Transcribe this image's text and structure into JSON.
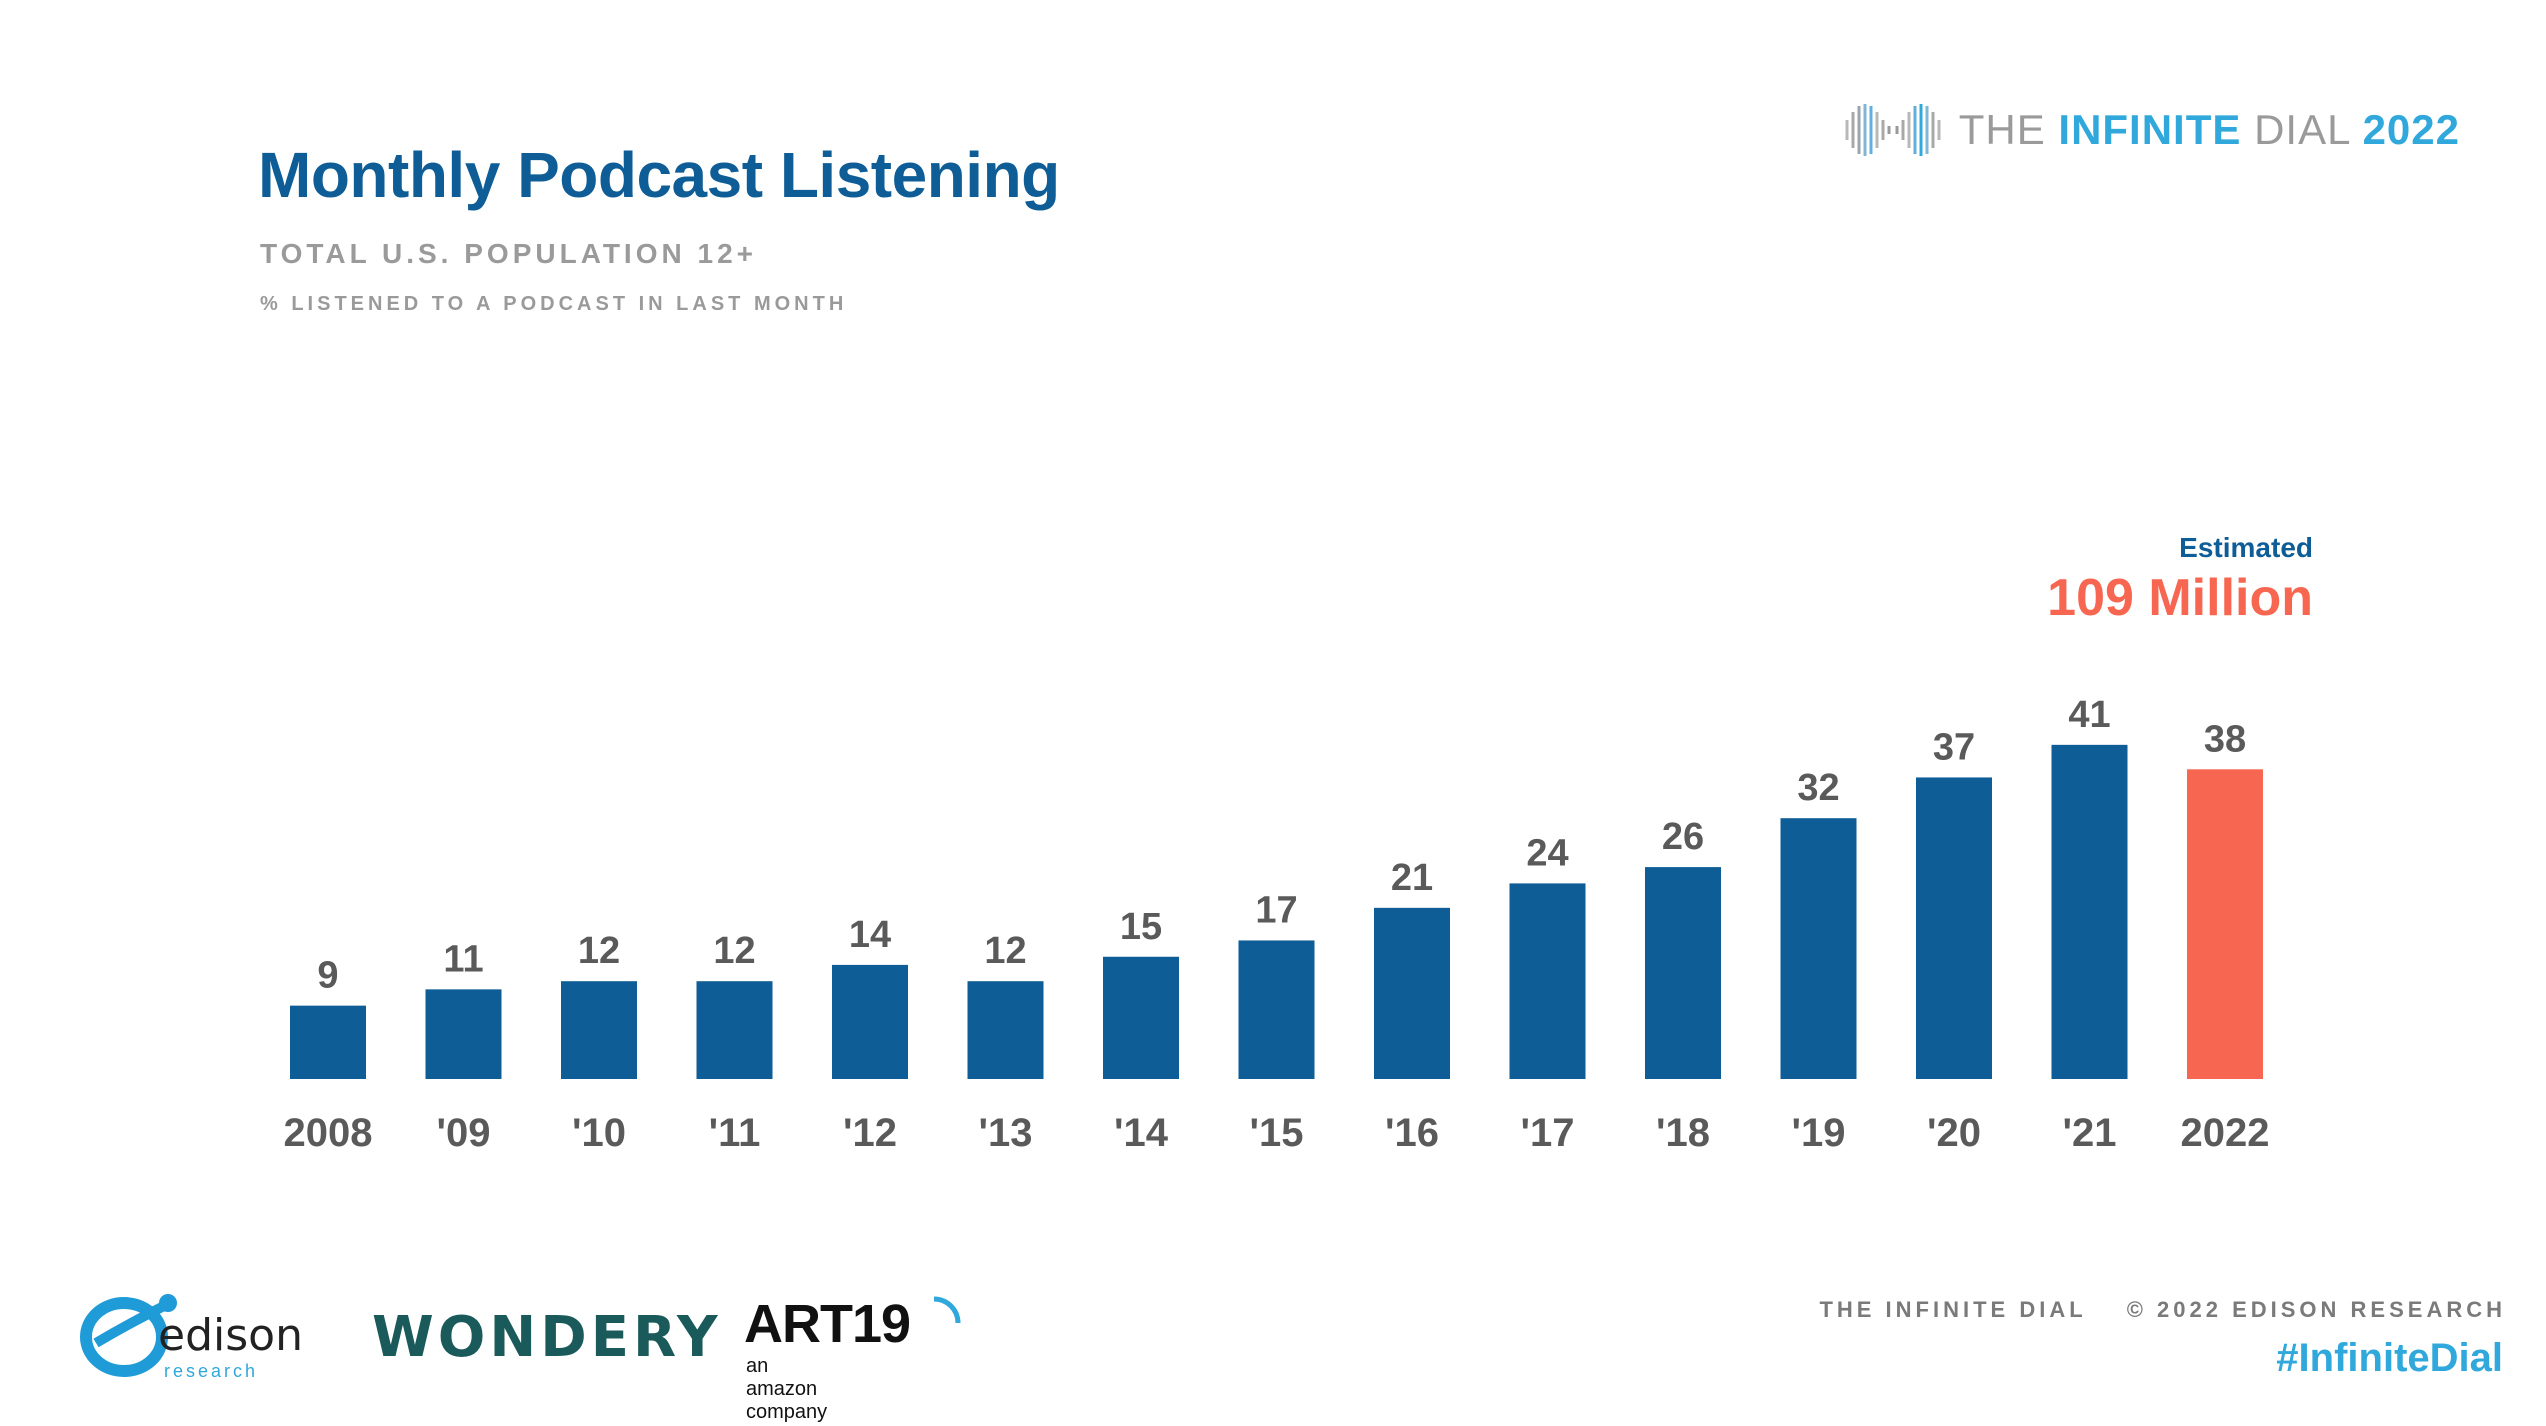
{
  "header": {
    "title": "Monthly Podcast Listening",
    "subtitle": "TOTAL U.S. POPULATION 12+",
    "subtitle2": "% LISTENED TO A PODCAST IN LAST MONTH"
  },
  "brand": {
    "part1": "THE ",
    "part2": "INFINITE",
    "part3": " DIAL ",
    "part4": "2022",
    "icon": "infinity-wave-icon"
  },
  "estimate": {
    "label": "Estimated",
    "value": "109 Million"
  },
  "colors": {
    "primary": "#0e5d96",
    "highlight": "#f76650",
    "label_gray": "#5a5a5a"
  },
  "chart_data": {
    "type": "bar",
    "categories": [
      "2008",
      "'09",
      "'10",
      "'11",
      "'12",
      "'13",
      "'14",
      "'15",
      "'16",
      "'17",
      "'18",
      "'19",
      "'20",
      "'21",
      "2022"
    ],
    "values": [
      9,
      11,
      12,
      12,
      14,
      12,
      15,
      17,
      21,
      24,
      26,
      32,
      37,
      41,
      38
    ],
    "highlight_index": 14,
    "ylim": [
      0,
      50
    ],
    "grid": false,
    "data_labels": true
  },
  "footer": {
    "credit": "THE INFINITE DIAL    © 2022 EDISON RESEARCH",
    "hashtag": "#InfiniteDial",
    "logos": {
      "edison_word": "edison",
      "edison_sub": "research",
      "wondery": "WONDERY",
      "art19": "ART19",
      "art19_sub": "an amazon company"
    }
  }
}
